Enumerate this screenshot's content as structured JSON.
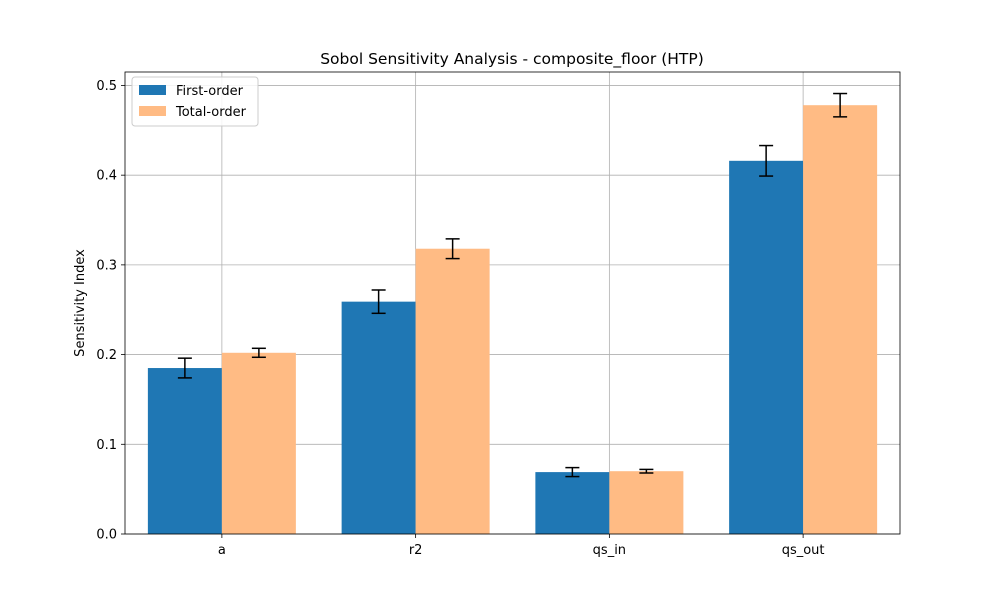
{
  "chart_data": {
    "type": "bar",
    "title": "Sobol Sensitivity Analysis - composite_floor (HTP)",
    "xlabel": "",
    "ylabel": "Sensitivity Index",
    "categories": [
      "a",
      "r2",
      "qs_in",
      "qs_out"
    ],
    "series": [
      {
        "name": "First-order",
        "color": "#1f77b4",
        "values": [
          0.185,
          0.259,
          0.069,
          0.416
        ],
        "errors": [
          0.011,
          0.013,
          0.005,
          0.017
        ]
      },
      {
        "name": "Total-order",
        "color": "#ffbb84",
        "values": [
          0.202,
          0.318,
          0.07,
          0.478
        ],
        "errors": [
          0.005,
          0.011,
          0.002,
          0.013
        ]
      }
    ],
    "ylim": [
      0,
      0.515
    ],
    "yticks": [
      "0.0",
      "0.1",
      "0.2",
      "0.3",
      "0.4",
      "0.5"
    ],
    "grid": true,
    "legend_position": "top-left"
  }
}
